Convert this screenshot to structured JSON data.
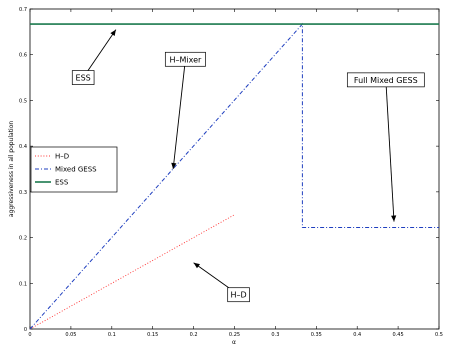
{
  "chart_data": {
    "type": "line",
    "xlabel": "α",
    "ylabel": "aggressiveness in all population",
    "xlim": [
      0,
      0.5
    ],
    "ylim": [
      0,
      0.7
    ],
    "xticks": [
      0,
      0.05,
      0.1,
      0.15,
      0.2,
      0.25,
      0.3,
      0.35,
      0.4,
      0.45,
      0.5
    ],
    "xtick_labels": [
      "0",
      "0.05",
      "0.1",
      "0.15",
      "0.2",
      "0.25",
      "0.3",
      "0.35",
      "0.4",
      "0.45",
      "0.5"
    ],
    "yticks": [
      0,
      0.1,
      0.2,
      0.3,
      0.4,
      0.5,
      0.6,
      0.7
    ],
    "ytick_labels": [
      "0",
      "0.1",
      "0.2",
      "0.3",
      "0.4",
      "0.5",
      "0.6",
      "0.7"
    ],
    "grid": false,
    "legend_position": "center-left",
    "series": [
      {
        "name": "H–D",
        "color": "#ff3333",
        "style": "dotted",
        "x": [
          0,
          0.25
        ],
        "y": [
          0,
          0.25
        ]
      },
      {
        "name": "Mixed GESS",
        "color": "#1f3fbf",
        "style": "dashdot",
        "x": [
          0,
          0.333,
          0.333,
          0.5
        ],
        "y": [
          0,
          0.667,
          0.222,
          0.222
        ]
      },
      {
        "name": "ESS",
        "color": "#1b7a4e",
        "style": "solid",
        "x": [
          0,
          0.5
        ],
        "y": [
          0.667,
          0.667
        ]
      }
    ],
    "annotations": [
      {
        "text": "ESS",
        "text_at": [
          0.065,
          0.55
        ],
        "arrow_to": [
          0.105,
          0.655
        ]
      },
      {
        "text": "H–Mixer",
        "text_at": [
          0.19,
          0.59
        ],
        "arrow_to": [
          0.175,
          0.35
        ]
      },
      {
        "text": "Full Mixed GESS",
        "text_at": [
          0.435,
          0.545
        ],
        "arrow_to": [
          0.445,
          0.235
        ]
      },
      {
        "text": "H–D",
        "text_at": [
          0.255,
          0.075
        ],
        "arrow_to": [
          0.2,
          0.145
        ]
      }
    ]
  }
}
